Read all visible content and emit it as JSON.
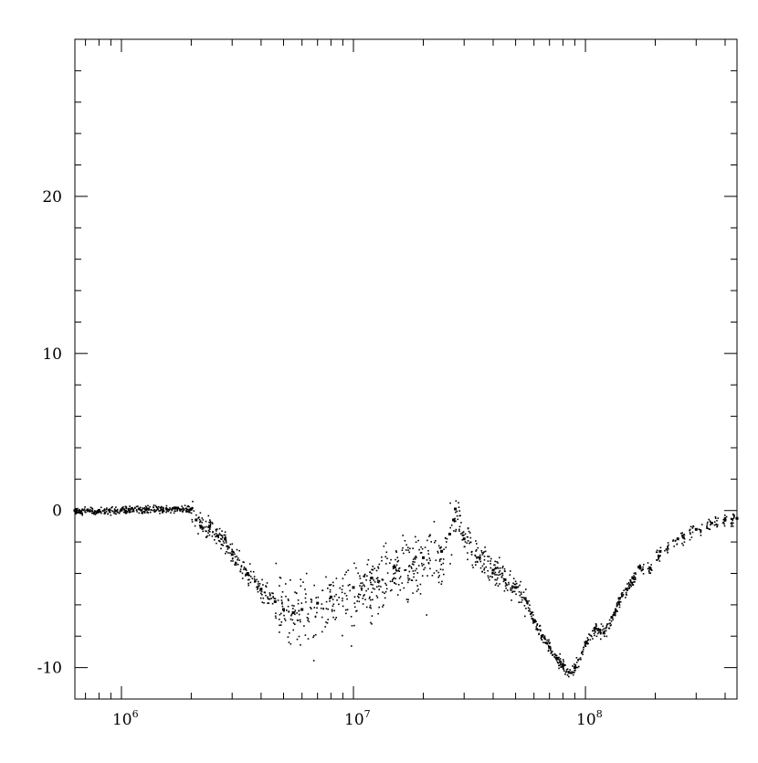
{
  "chart_data": {
    "type": "scatter",
    "title": "",
    "xlabel": "",
    "ylabel": "",
    "xscale": "log",
    "xlim": [
      630000,
      450000000
    ],
    "ylim": [
      -12,
      30
    ],
    "grid": false,
    "colors": {
      "axis": "#000000",
      "points": "#000000",
      "background": "#ffffff"
    },
    "x_ticks": [
      {
        "value": 1000000,
        "base": "10",
        "exp": "6"
      },
      {
        "value": 10000000,
        "base": "10",
        "exp": "7"
      },
      {
        "value": 100000000,
        "base": "10",
        "exp": "8"
      }
    ],
    "y_ticks": [
      {
        "value": -10,
        "label": "-10"
      },
      {
        "value": 0,
        "label": "0"
      },
      {
        "value": 10,
        "label": "10"
      },
      {
        "value": 20,
        "label": "20"
      }
    ],
    "series": [
      {
        "points": [
          [
            630000,
            0
          ],
          [
            800000,
            0
          ],
          [
            1000000,
            0.05
          ],
          [
            1300000,
            0.1
          ],
          [
            1700000,
            0.15
          ],
          [
            2000000,
            0.1
          ],
          [
            2100000,
            -0.6
          ],
          [
            2200000,
            -1.0
          ],
          [
            2400000,
            -1.0
          ],
          [
            2600000,
            -1.6
          ],
          [
            2800000,
            -1.8
          ],
          [
            3000000,
            -2.8
          ],
          [
            3500000,
            -4.0
          ],
          [
            4000000,
            -5.0
          ],
          [
            4600000,
            -5.8
          ],
          [
            5000000,
            -6.3
          ],
          [
            5500000,
            -6.5
          ],
          [
            6000000,
            -6.3
          ],
          [
            7000000,
            -5.9
          ],
          [
            8000000,
            -5.5
          ],
          [
            10000000,
            -4.9
          ],
          [
            12000000,
            -4.3
          ],
          [
            15000000,
            -3.6
          ],
          [
            20000000,
            -3.0
          ],
          [
            24000000,
            -2.6
          ],
          [
            26000000,
            -1.5
          ],
          [
            27000000,
            -0.6
          ],
          [
            27500000,
            0.1
          ],
          [
            30000000,
            -1.8
          ],
          [
            35000000,
            -3.0
          ],
          [
            40000000,
            -3.8
          ],
          [
            45000000,
            -4.4
          ],
          [
            50000000,
            -4.9
          ],
          [
            55000000,
            -5.6
          ],
          [
            60000000,
            -7.0
          ],
          [
            65000000,
            -8.0
          ],
          [
            70000000,
            -8.7
          ],
          [
            75000000,
            -9.4
          ],
          [
            80000000,
            -9.9
          ],
          [
            85000000,
            -10.3
          ],
          [
            90000000,
            -10.0
          ],
          [
            100000000,
            -8.4
          ],
          [
            110000000,
            -7.5
          ],
          [
            120000000,
            -7.8
          ],
          [
            130000000,
            -6.8
          ],
          [
            140000000,
            -5.6
          ],
          [
            150000000,
            -5.0
          ],
          [
            160000000,
            -4.3
          ],
          [
            170000000,
            -3.6
          ],
          [
            190000000,
            -3.7
          ],
          [
            210000000,
            -2.6
          ],
          [
            250000000,
            -1.8
          ],
          [
            300000000,
            -1.2
          ],
          [
            350000000,
            -0.8
          ],
          [
            400000000,
            -0.6
          ],
          [
            450000000,
            -0.5
          ]
        ]
      }
    ]
  }
}
